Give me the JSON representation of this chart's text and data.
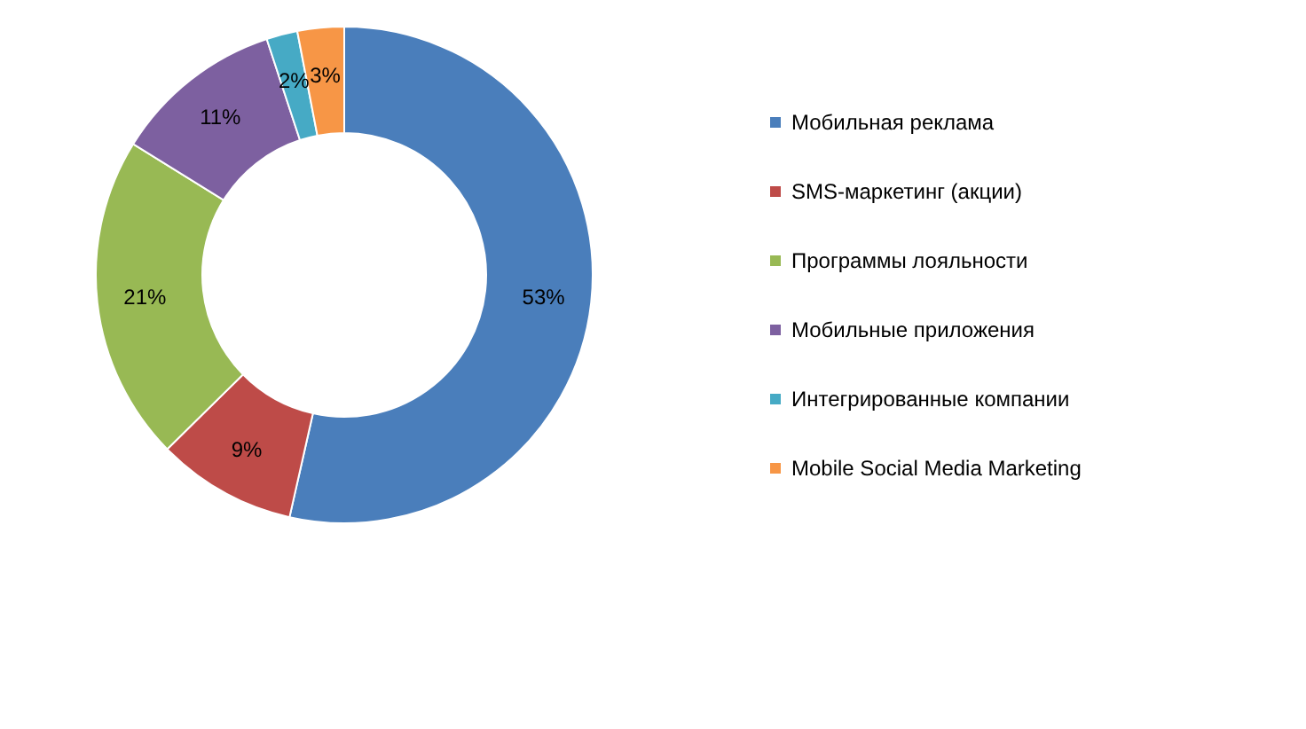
{
  "chart_data": {
    "type": "donut",
    "categories": [
      "Мобильная реклама",
      "SMS-маркетинг (акции)",
      "Программы лояльности",
      "Мобильные приложения",
      "Интегрированные компании",
      "Mobile Social Media Marketing"
    ],
    "values": [
      53,
      9,
      21,
      11,
      2,
      3
    ],
    "value_labels": [
      "53%",
      "9%",
      "21%",
      "11%",
      "2%",
      "3%"
    ],
    "colors": [
      "#4a7ebb",
      "#be4b48",
      "#98b954",
      "#7d60a0",
      "#46aac5",
      "#f79646"
    ],
    "legend": "right"
  }
}
